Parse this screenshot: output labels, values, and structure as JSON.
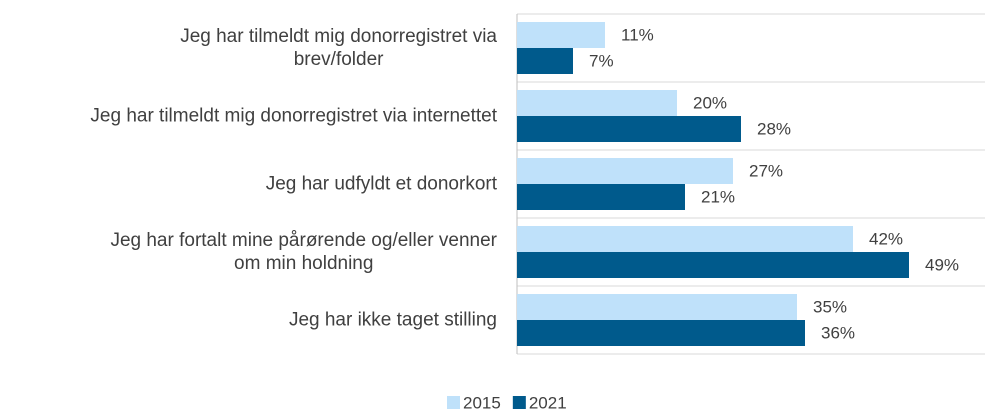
{
  "chart_data": {
    "type": "bar",
    "orientation": "horizontal",
    "categories": [
      "Jeg har tilmeldt mig donorregistret via\nbrev/folder",
      "Jeg har tilmeldt mig donorregistret via internettet",
      "Jeg har udfyldt et donorkort",
      "Jeg har fortalt mine pårørende og/eller venner\nom min holdning",
      "Jeg har ikke taget stilling"
    ],
    "series": [
      {
        "name": "2015",
        "color": "#bfe1fa",
        "values": [
          11,
          20,
          27,
          42,
          35
        ],
        "value_labels": [
          "11%",
          "20%",
          "27%",
          "42%",
          "35%"
        ]
      },
      {
        "name": "2021",
        "color": "#005a8c",
        "values": [
          7,
          28,
          21,
          49,
          36
        ],
        "value_labels": [
          "7%",
          "28%",
          "21%",
          "49%",
          "36%"
        ]
      }
    ],
    "xlim": [
      0,
      50
    ],
    "legend": "bottom"
  }
}
